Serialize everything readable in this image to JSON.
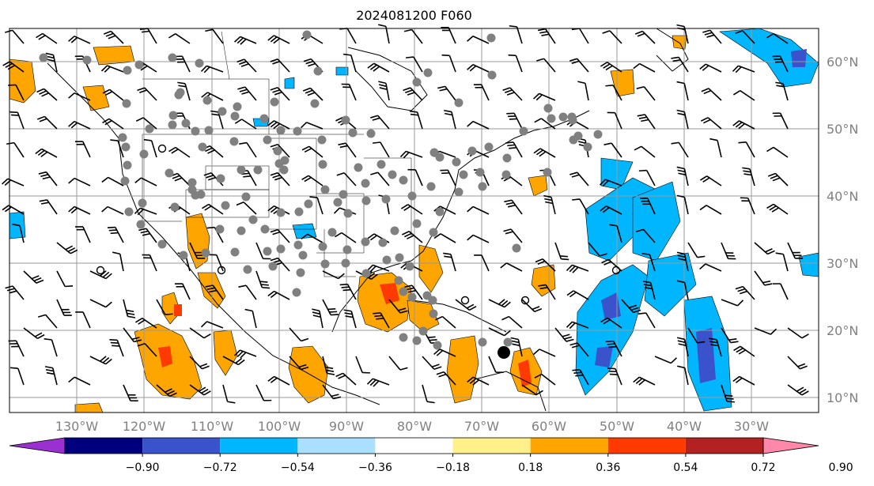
{
  "title": "2024081200 F060",
  "map": {
    "lon_range": [
      -140,
      -20
    ],
    "lat_range": [
      8,
      65
    ],
    "lon_labels": [
      "130°W",
      "120°W",
      "110°W",
      "100°W",
      "90°W",
      "80°W",
      "70°W",
      "60°W",
      "50°W",
      "40°W",
      "30°W"
    ],
    "lat_labels": [
      "60°N",
      "50°N",
      "40°N",
      "30°N",
      "20°N",
      "10°N"
    ],
    "gridlines": true
  },
  "colorbar": {
    "orientation": "horizontal",
    "extend": "both",
    "colors": [
      "#9b30d0",
      "#00007f",
      "#3a52cc",
      "#00b7ff",
      "#aadfff",
      "#ffffff",
      "#fff08a",
      "#ffa500",
      "#ff3a00",
      "#b22222",
      "#ff88aa"
    ],
    "tick_labels": [
      "−0.90",
      "−0.72",
      "−0.54",
      "−0.36",
      "−0.18",
      "0.18",
      "0.36",
      "0.54",
      "0.72",
      "0.90"
    ]
  },
  "colors": {
    "positive_field": "#ffa500",
    "negative_field": "#00b7ff",
    "station_marker": "#808080"
  }
}
